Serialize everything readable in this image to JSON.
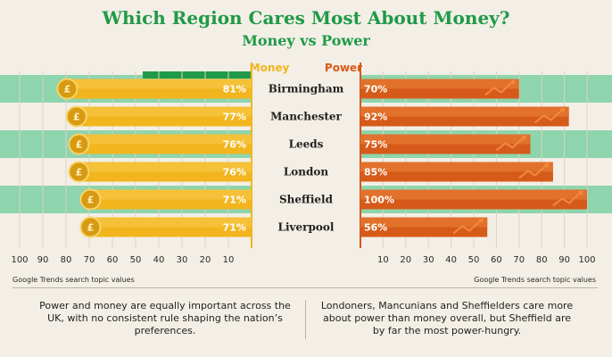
{
  "header": {
    "title": "Which Region Cares Most About Money?",
    "subtitle": "Money vs Power"
  },
  "chart_data": {
    "type": "bar",
    "categories": [
      "Birmingham",
      "Manchester",
      "Leeds",
      "London",
      "Sheffield",
      "Liverpool"
    ],
    "series": [
      {
        "name": "Money",
        "values": [
          81,
          77,
          76,
          76,
          71,
          71
        ],
        "labels": [
          "81%",
          "77%",
          "76%",
          "76%",
          "71%",
          "71%"
        ],
        "color": "#f2b51e"
      },
      {
        "name": "Power",
        "values": [
          70,
          92,
          75,
          85,
          100,
          56
        ],
        "labels": [
          "70%",
          "92%",
          "75%",
          "85%",
          "100%",
          "56%"
        ],
        "color": "#d65a1a"
      }
    ],
    "left_axis": {
      "ticks": [
        "100",
        "90",
        "80",
        "70",
        "60",
        "50",
        "40",
        "30",
        "20",
        "10"
      ],
      "label": "Google Trends search topic values",
      "range": [
        100,
        0
      ]
    },
    "right_axis": {
      "ticks": [
        "10",
        "20",
        "30",
        "40",
        "50",
        "60",
        "70",
        "80",
        "90",
        "100"
      ],
      "label": "Google Trends search topic values",
      "range": [
        0,
        100
      ]
    },
    "gridlines": true
  },
  "colors": {
    "accent_green": "#1f9a48",
    "band_green": "#8ed4ad",
    "money_bar": "#f2b51e",
    "power_bar": "#d65a1a",
    "background": "#f3efe6"
  },
  "icons": {
    "money": "pound-coin-icon",
    "power": "arrow-up-icon"
  },
  "footer": {
    "left": "Power and money are equally important across the UK, with no consistent rule shaping the nation’s preferences.",
    "right": "Londoners, Mancunians and Sheffielders care more about power than money overall, but Sheffield are by far the most power-hungry."
  }
}
